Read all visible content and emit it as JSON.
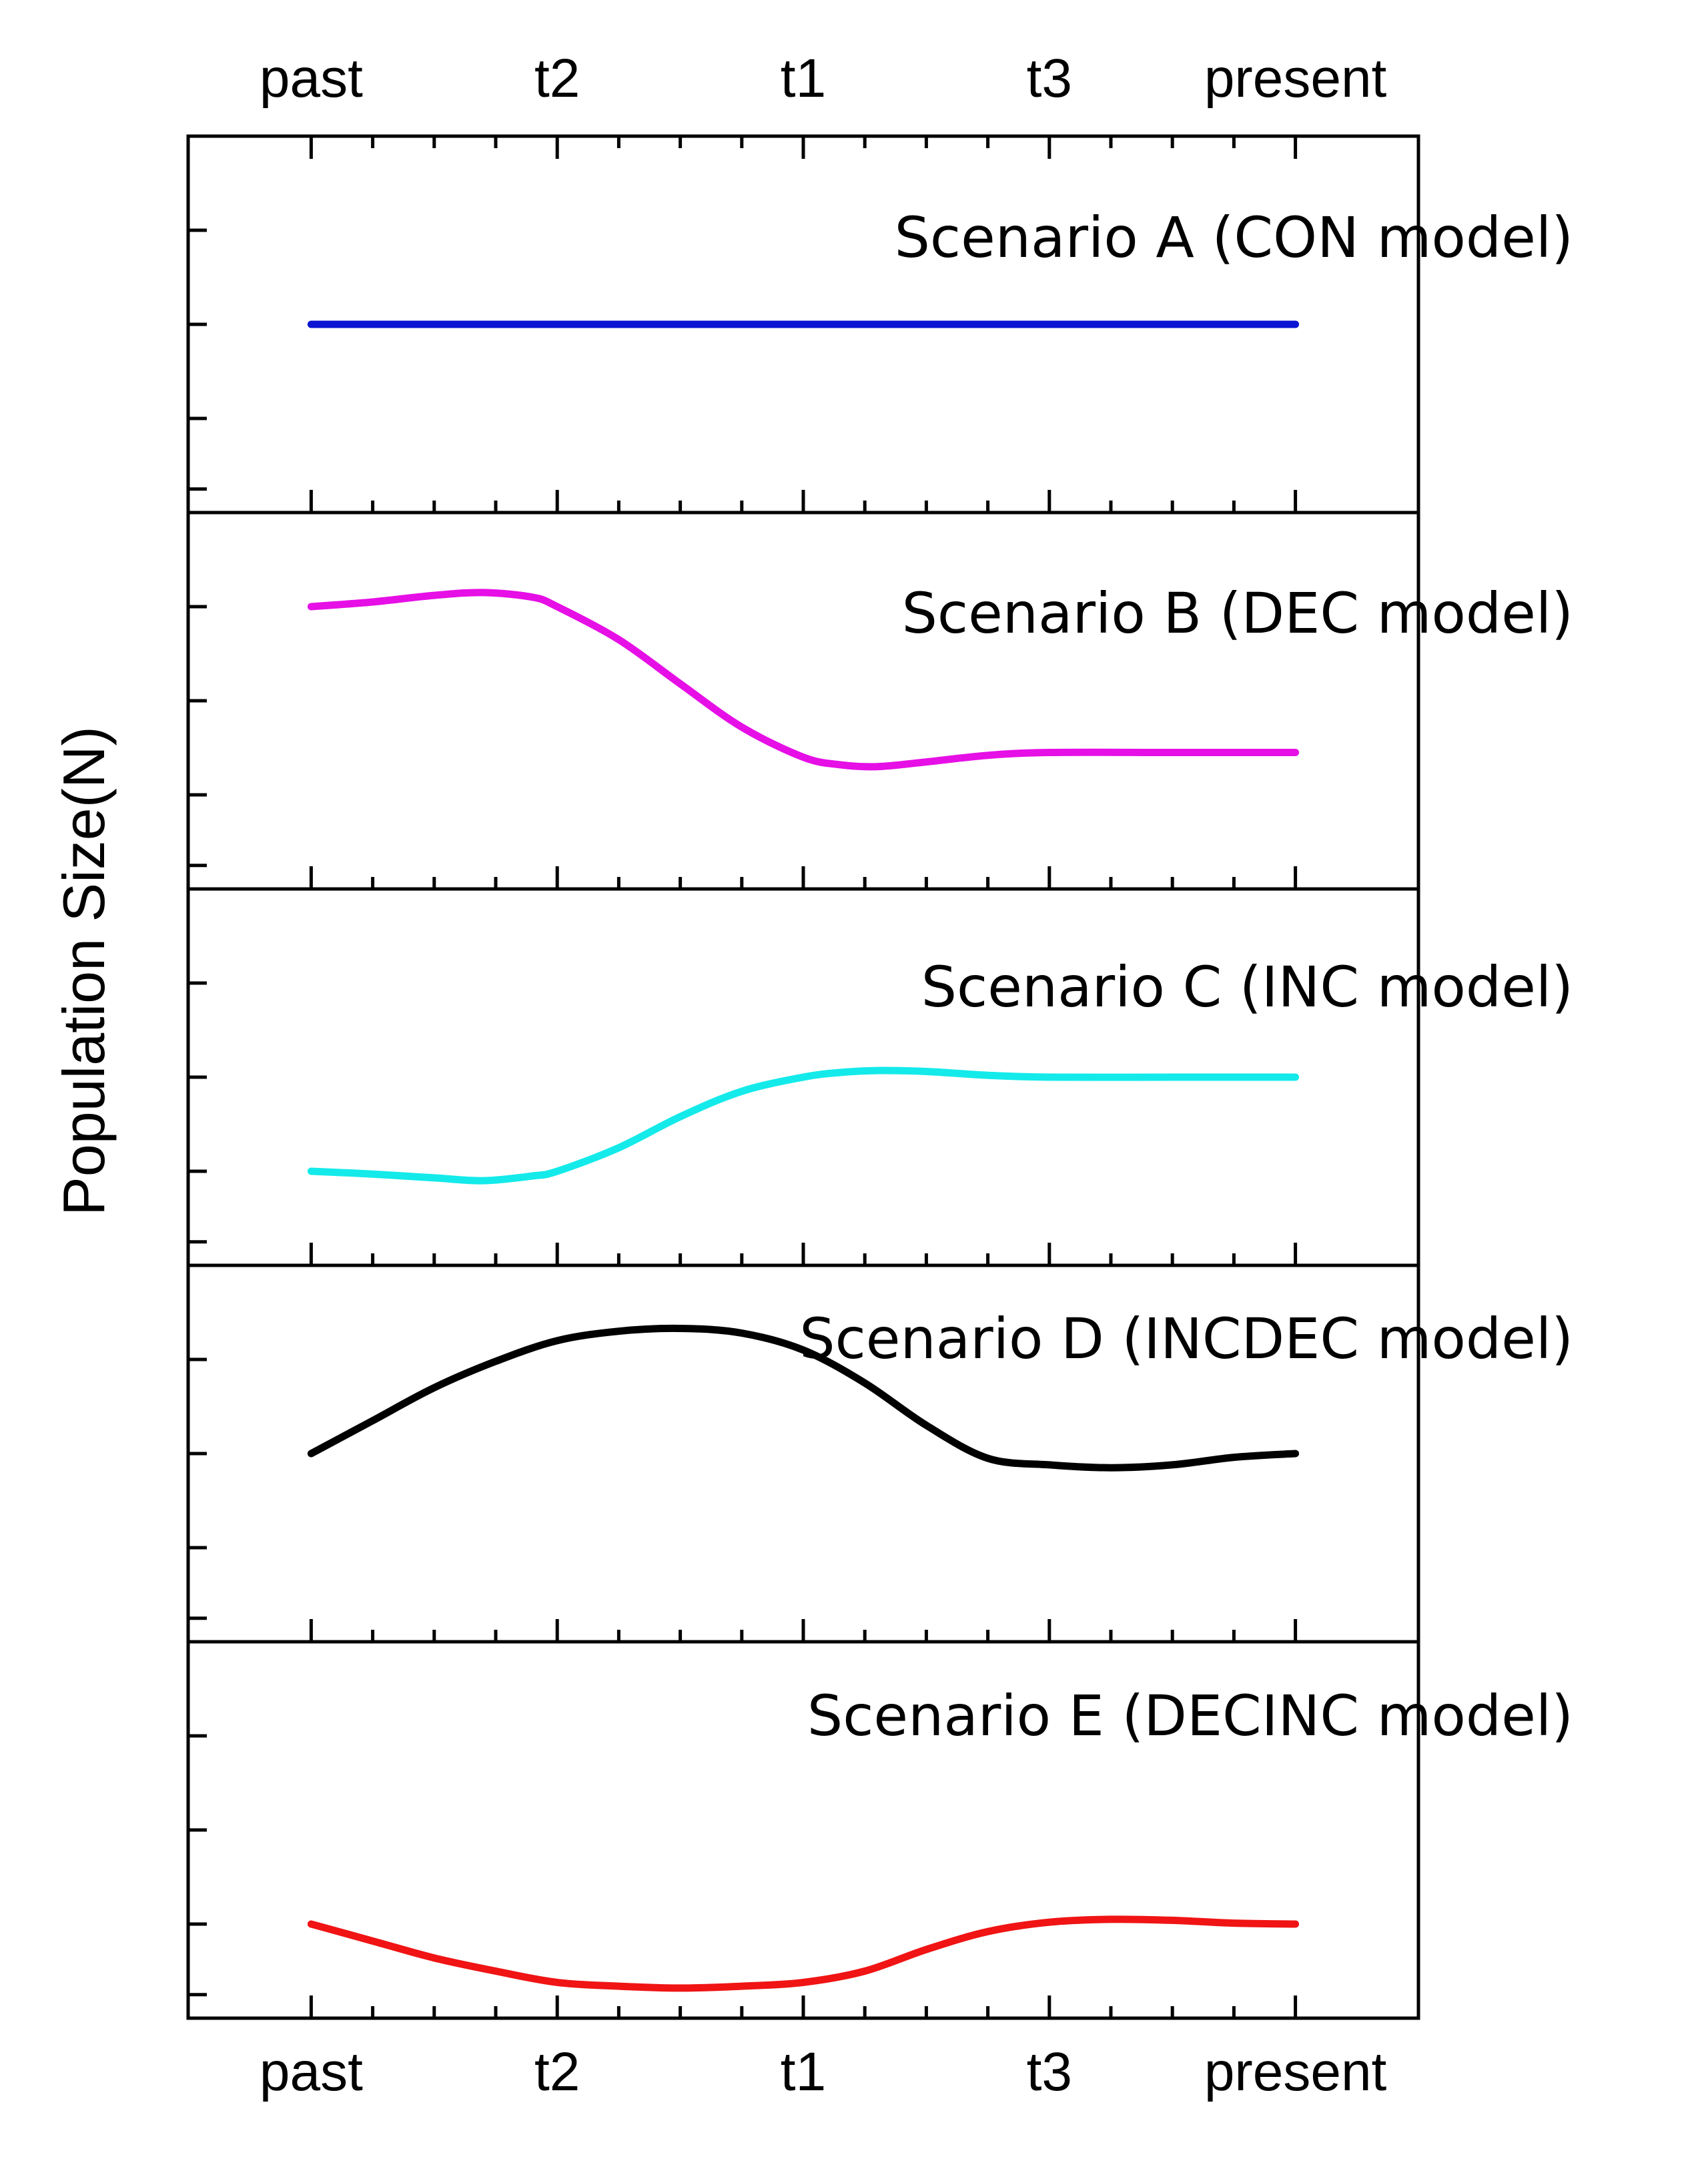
{
  "chart_data": {
    "type": "line",
    "ylabel": "Population Size(N)",
    "x_tick_labels": [
      "past",
      "t2",
      "t1",
      "t3",
      "present"
    ],
    "x_positions": [
      0,
      2,
      4,
      6,
      8
    ],
    "xlim": [
      -1,
      9
    ],
    "ylim": [
      0,
      4
    ],
    "panels": [
      {
        "label": "Scenario A (CON model)",
        "color": "#0a14d2",
        "x": [
          0,
          8
        ],
        "y": [
          2,
          2
        ]
      },
      {
        "label": "Scenario B (DEC model)",
        "color": "#e60fe6",
        "x": [
          0,
          0.5,
          1,
          1.4,
          1.8,
          2,
          2.5,
          3,
          3.5,
          4,
          4.3,
          4.6,
          5,
          5.5,
          6,
          7,
          8
        ],
        "y": [
          3,
          3.05,
          3.12,
          3.15,
          3.1,
          3,
          2.65,
          2.18,
          1.72,
          1.4,
          1.32,
          1.3,
          1.35,
          1.42,
          1.45,
          1.45,
          1.45
        ]
      },
      {
        "label": "Scenario C (INC model)",
        "color": "#14eaea",
        "x": [
          0,
          0.5,
          1,
          1.4,
          1.8,
          2,
          2.5,
          3,
          3.5,
          4,
          4.3,
          4.6,
          5,
          5.5,
          6,
          7,
          8
        ],
        "y": [
          1,
          0.97,
          0.93,
          0.9,
          0.95,
          1,
          1.25,
          1.58,
          1.85,
          2.0,
          2.05,
          2.07,
          2.06,
          2.02,
          2.0,
          2.0,
          2.0
        ]
      },
      {
        "label": "Scenario D (INCDEC model)",
        "color": "#000000",
        "x": [
          0,
          0.5,
          1,
          1.5,
          2,
          2.5,
          3,
          3.5,
          4,
          4.5,
          5,
          5.5,
          6,
          6.5,
          7,
          7.5,
          8
        ],
        "y": [
          2,
          2.35,
          2.7,
          2.98,
          3.2,
          3.3,
          3.33,
          3.28,
          3.1,
          2.75,
          2.3,
          1.95,
          1.88,
          1.85,
          1.88,
          1.96,
          2
        ]
      },
      {
        "label": "Scenario E (DECINC model)",
        "color": "#f01414",
        "x": [
          0,
          0.5,
          1,
          1.5,
          2,
          2.5,
          3,
          3.5,
          4,
          4.5,
          5,
          5.5,
          6,
          6.5,
          7,
          7.5,
          8
        ],
        "y": [
          1,
          0.82,
          0.64,
          0.5,
          0.38,
          0.34,
          0.32,
          0.34,
          0.38,
          0.5,
          0.73,
          0.92,
          1.02,
          1.05,
          1.04,
          1.01,
          1.0
        ]
      }
    ]
  }
}
